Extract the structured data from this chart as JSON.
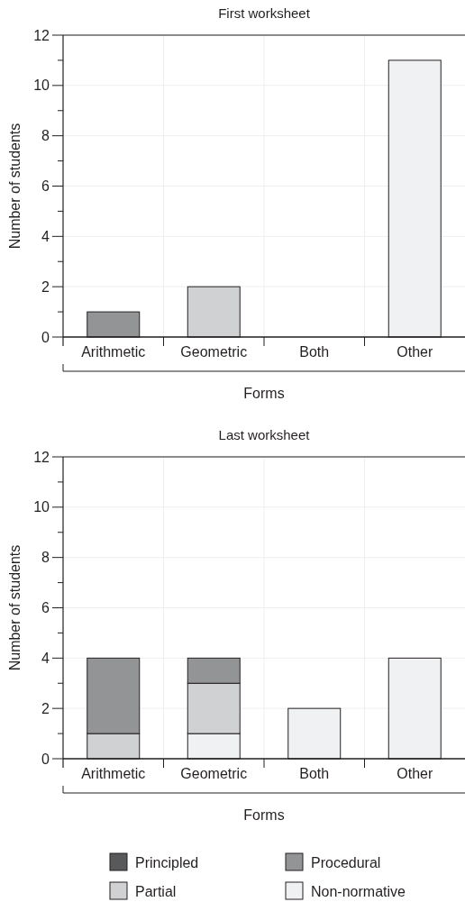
{
  "chart_data": [
    {
      "type": "bar",
      "title": "First worksheet",
      "xlabel": "Forms",
      "ylabel": "Number of students",
      "categories": [
        "Arithmetic",
        "Geometric",
        "Both",
        "Other"
      ],
      "stacked": true,
      "ylim": [
        0,
        12
      ],
      "yticks": [
        0,
        {
          "value": 1,
          "label": null
        },
        2,
        {
          "value": 3,
          "label": null
        },
        4,
        {
          "value": 5,
          "label": null
        },
        6,
        {
          "value": 7,
          "label": null
        },
        8,
        {
          "value": 9,
          "label": null
        },
        10,
        {
          "value": 11,
          "label": null
        },
        12
      ],
      "grid": true,
      "legend": false,
      "series": [
        {
          "color": "#f0f1f2",
          "values": [
            0,
            0,
            0,
            11
          ]
        },
        {
          "color": "#d0d1d3",
          "values": [
            0,
            2,
            0,
            0
          ]
        },
        {
          "color": "#939496",
          "values": [
            1,
            0,
            0,
            0
          ]
        }
      ]
    },
    {
      "type": "bar",
      "title": "Last worksheet",
      "xlabel": "Forms",
      "ylabel": "Number of students",
      "categories": [
        "Arithmetic",
        "Geometric",
        "Both",
        "Other"
      ],
      "stacked": true,
      "ylim": [
        0,
        12
      ],
      "yticks": [
        0,
        {
          "value": 1,
          "label": null
        },
        2,
        {
          "value": 3,
          "label": null
        },
        4,
        {
          "value": 5,
          "label": null
        },
        6,
        {
          "value": 7,
          "label": null
        },
        8,
        {
          "value": 9,
          "label": null
        },
        10,
        {
          "value": 11,
          "label": null
        },
        12
      ],
      "grid": true,
      "legend": "bottom",
      "series": [
        {
          "name": "Non-normative",
          "color": "#f0f1f2",
          "values": [
            0,
            1,
            2,
            4
          ]
        },
        {
          "name": "Partial",
          "color": "#d0d1d3",
          "values": [
            1,
            2,
            0,
            0
          ]
        },
        {
          "name": "Procedural",
          "color": "#939496",
          "values": [
            3,
            1,
            0,
            0
          ]
        },
        {
          "name": "Principled",
          "color": "#58595b",
          "values": [
            0,
            0,
            0,
            0
          ]
        }
      ]
    }
  ]
}
